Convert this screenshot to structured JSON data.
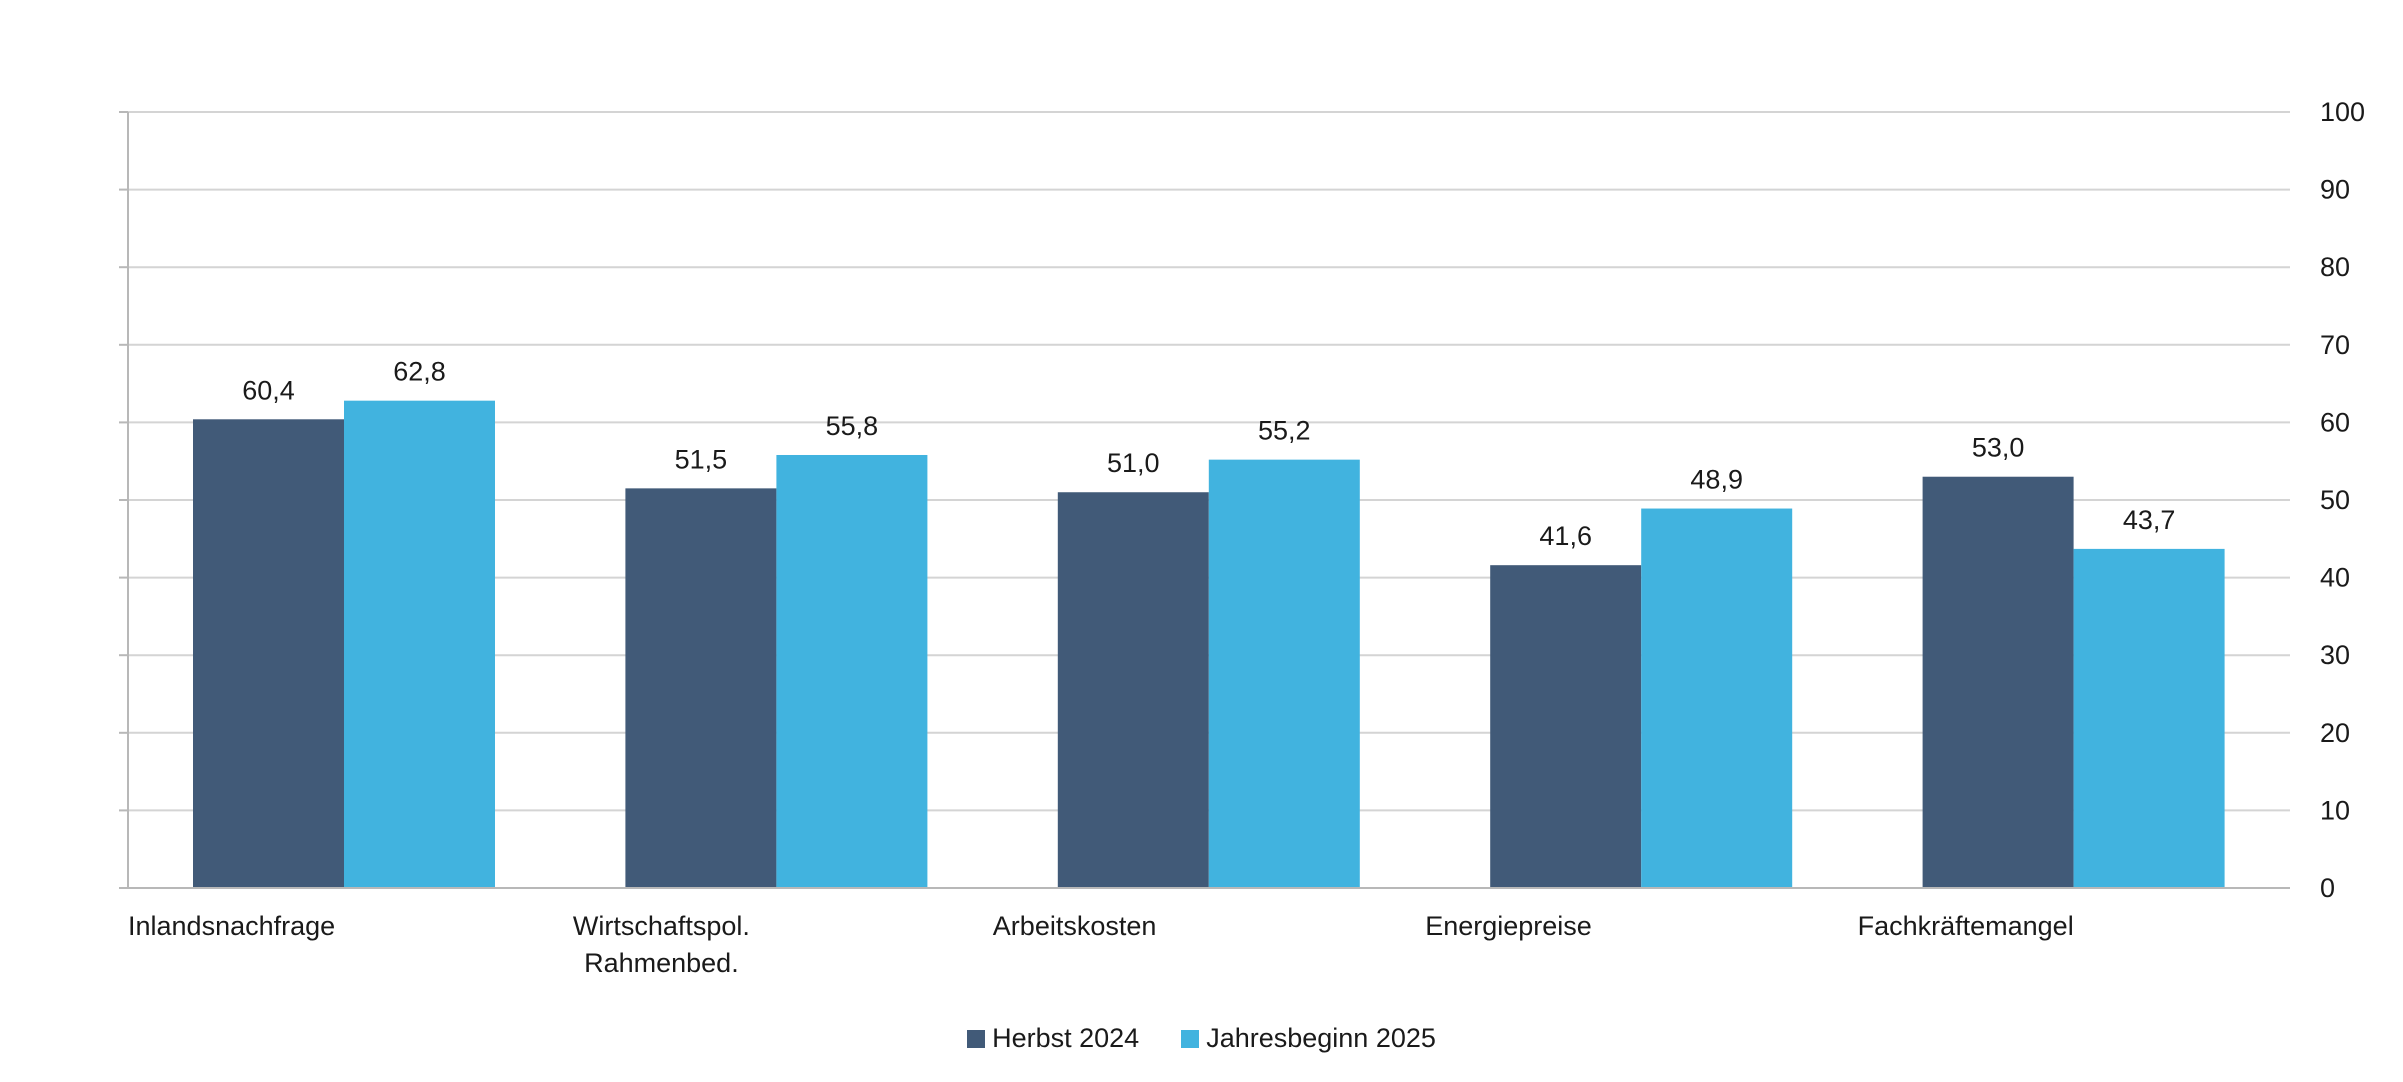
{
  "chart_data": {
    "type": "bar",
    "categories": [
      "Inlandsnachfrage",
      "Wirtschaftspol. Rahmenbed.",
      "Arbeitskosten",
      "Energiepreise",
      "Fachkräftemangel"
    ],
    "category_lines": [
      [
        "Inlandsnachfrage"
      ],
      [
        "Wirtschaftspol.",
        "Rahmenbed."
      ],
      [
        "Arbeitskosten"
      ],
      [
        "Energiepreise"
      ],
      [
        "Fachkräftemangel"
      ]
    ],
    "series": [
      {
        "name": "Herbst 2024",
        "color": "#415a78",
        "values": [
          60.4,
          51.5,
          51.0,
          41.6,
          53.0
        ],
        "labels": [
          "60,4",
          "51,5",
          "51,0",
          "41,6",
          "53,0"
        ]
      },
      {
        "name": "Jahresbeginn 2025",
        "color": "#41b3df",
        "values": [
          62.8,
          55.8,
          55.2,
          48.9,
          43.7
        ],
        "labels": [
          "62,8",
          "55,8",
          "55,2",
          "48,9",
          "43,7"
        ]
      }
    ],
    "ylim": [
      0,
      100
    ],
    "yticks": [
      0,
      10,
      20,
      30,
      40,
      50,
      60,
      70,
      80,
      90,
      100
    ],
    "y_axis_side": "right",
    "grid": true,
    "legend_position": "bottom-center",
    "title": "",
    "xlabel": "",
    "ylabel": ""
  }
}
